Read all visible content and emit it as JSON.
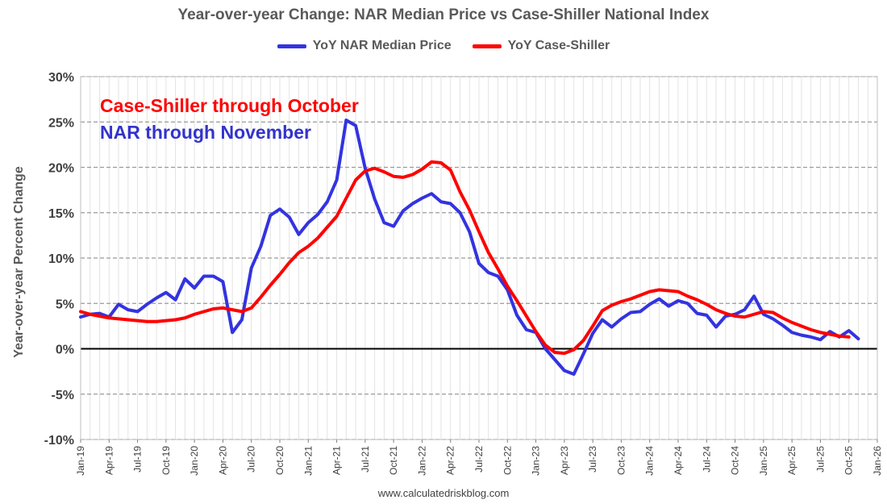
{
  "chart_data": {
    "type": "line",
    "title": "Year-over-year Change: NAR Median Price vs Case-Shiller National Index",
    "xlabel": "",
    "ylabel": "Year-over-year Percent Change",
    "ylim": [
      -10,
      30
    ],
    "yticks": [
      -10,
      -5,
      0,
      5,
      10,
      15,
      20,
      25,
      30
    ],
    "ytick_labels": [
      "-10%",
      "-5%",
      "0%",
      "5%",
      "10%",
      "15%",
      "20%",
      "25%",
      "30%"
    ],
    "xlim": [
      0,
      84
    ],
    "xtick_step": 3,
    "xtick_labels": [
      "Jan-19",
      "Apr-19",
      "Jul-19",
      "Oct-19",
      "Jan-20",
      "Apr-20",
      "Jul-20",
      "Oct-20",
      "Jan-21",
      "Apr-21",
      "Jul-21",
      "Oct-21",
      "Jan-22",
      "Apr-22",
      "Jul-22",
      "Oct-22",
      "Jan-23",
      "Apr-23",
      "Jul-23",
      "Oct-23",
      "Jan-24",
      "Apr-24",
      "Jul-24",
      "Oct-24",
      "Jan-25",
      "Apr-25",
      "Jul-25",
      "Oct-25",
      "Jan-26"
    ],
    "x_index_note": "x is months since Jan-19 (0 = Jan-19)",
    "series": [
      {
        "name": "YoY NAR Median Price",
        "color": "#3333e0",
        "values": [
          3.5,
          3.8,
          3.9,
          3.5,
          4.9,
          4.3,
          4.1,
          4.9,
          5.6,
          6.2,
          5.4,
          7.7,
          6.7,
          8.0,
          8.0,
          7.4,
          1.8,
          3.2,
          8.9,
          11.3,
          14.7,
          15.4,
          14.5,
          12.6,
          13.9,
          14.8,
          16.2,
          18.6,
          25.2,
          24.6,
          19.9,
          16.5,
          13.9,
          13.5,
          15.2,
          16.0,
          16.6,
          17.1,
          16.2,
          16.0,
          15.0,
          12.9,
          9.4,
          8.4,
          8.0,
          6.5,
          3.7,
          2.1,
          1.8,
          0.0,
          -1.2,
          -2.4,
          -2.8,
          -0.6,
          1.7,
          3.2,
          2.4,
          3.3,
          4.0,
          4.1,
          4.9,
          5.5,
          4.7,
          5.3,
          5.0,
          3.9,
          3.7,
          2.4,
          3.6,
          3.8,
          4.3,
          5.8,
          3.8,
          3.3,
          2.6,
          1.8,
          1.5,
          1.3,
          1.0,
          1.9,
          1.3,
          2.0,
          1.1
        ],
        "last_label": "NAR through November"
      },
      {
        "name": "YoY Case-Shiller",
        "color": "#ff0000",
        "values": [
          4.1,
          3.8,
          3.6,
          3.4,
          3.3,
          3.2,
          3.1,
          3.0,
          3.0,
          3.1,
          3.2,
          3.4,
          3.8,
          4.1,
          4.4,
          4.5,
          4.3,
          4.1,
          4.5,
          5.7,
          7.0,
          8.2,
          9.5,
          10.6,
          11.3,
          12.2,
          13.4,
          14.6,
          16.6,
          18.6,
          19.6,
          19.9,
          19.5,
          19.0,
          18.9,
          19.2,
          19.8,
          20.6,
          20.5,
          19.7,
          17.3,
          15.3,
          12.9,
          10.6,
          8.8,
          6.9,
          5.3,
          3.6,
          1.9,
          0.4,
          -0.4,
          -0.5,
          -0.1,
          0.9,
          2.5,
          4.2,
          4.8,
          5.2,
          5.5,
          5.9,
          6.3,
          6.5,
          6.4,
          6.3,
          5.8,
          5.4,
          4.9,
          4.3,
          3.9,
          3.6,
          3.5,
          3.8,
          4.1,
          4.0,
          3.4,
          2.9,
          2.5,
          2.1,
          1.8,
          1.6,
          1.4,
          1.3
        ],
        "last_label": "Case-Shiller through October"
      }
    ],
    "annotations": [
      "Case-Shiller through October",
      "NAR through November"
    ],
    "legend_position": "top-center",
    "grid": true,
    "source": "www.calculatedriskblog.com"
  }
}
